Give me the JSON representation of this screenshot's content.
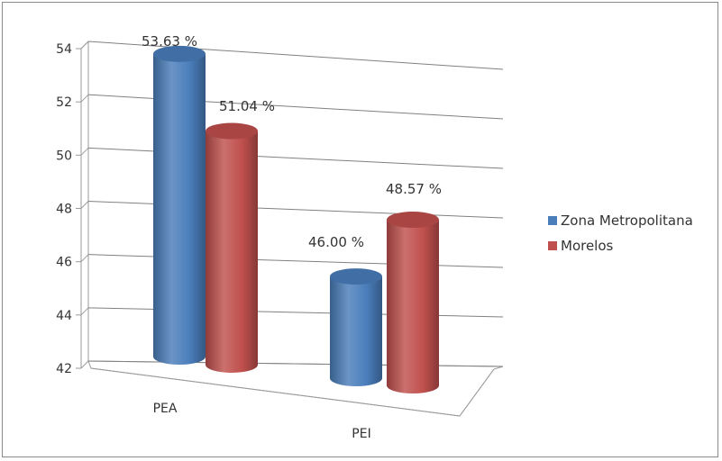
{
  "chart_data": {
    "type": "bar",
    "style": "3d-cylinder",
    "categories": [
      "PEA",
      "PEI"
    ],
    "series": [
      {
        "name": "Zona Metropolitana",
        "values": [
          53.63,
          46.0
        ],
        "labels": [
          "53.63 %",
          "46.00 %"
        ],
        "color": "#4a7ebb"
      },
      {
        "name": "Morelos",
        "values": [
          51.04,
          48.57
        ],
        "labels": [
          "51.04 %",
          "48.57 %"
        ],
        "color": "#c0504d"
      }
    ],
    "yticks": [
      42,
      44,
      46,
      48,
      50,
      52,
      54
    ],
    "ylim": [
      42,
      54
    ],
    "grid": true,
    "legend": "right",
    "title": "",
    "xlabel": "",
    "ylabel": ""
  }
}
